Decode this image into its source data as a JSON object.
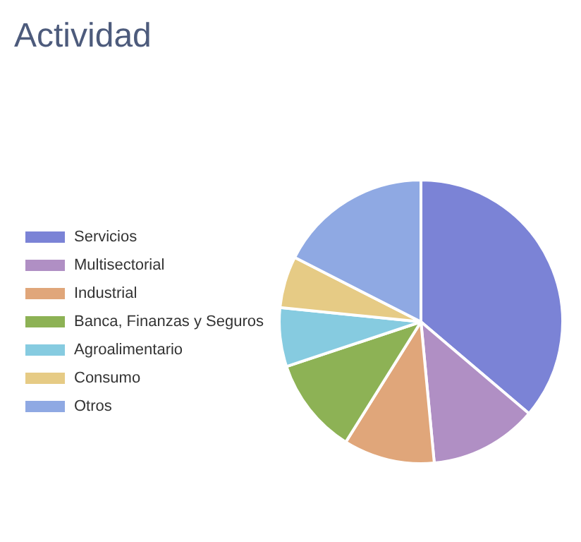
{
  "chart_data": {
    "type": "pie",
    "title": "Actividad",
    "categories": [
      "Servicios",
      "Multisectorial",
      "Industrial",
      "Banca, Finanzas y Seguros",
      "Agroalimentario",
      "Consumo",
      "Otros"
    ],
    "values": [
      36.2,
      12.3,
      10.4,
      11,
      6.7,
      5.9,
      17.5
    ],
    "colors": [
      "#7b83d6",
      "#b08fc4",
      "#e0a67a",
      "#8db255",
      "#86cbe0",
      "#e6cb85",
      "#8fa9e3"
    ],
    "legend": "left"
  }
}
